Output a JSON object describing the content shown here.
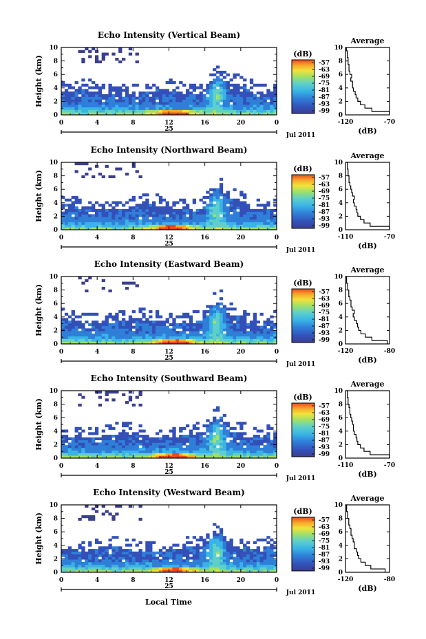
{
  "chart_data": [
    {
      "type": "heatmap",
      "title": "Echo Intensity (Vertical Beam)",
      "ylabel": "Height (km)",
      "ylim": [
        0,
        10
      ],
      "yticks": [
        0,
        2,
        4,
        6,
        8,
        10
      ],
      "xlim": [
        0,
        24
      ],
      "xticks": [
        "0",
        "4",
        "8",
        "12",
        "16",
        "20",
        "0"
      ],
      "date_label": "25",
      "month_label": "Jul 2011",
      "colorbar": {
        "unit": "(dB)",
        "ticks": [
          "-57",
          "-63",
          "-69",
          "-75",
          "-81",
          "-87",
          "-93",
          "-99"
        ]
      },
      "profile": {
        "title": "Average",
        "xlabel": "(dB)",
        "xticks": [
          "-120",
          "-70"
        ],
        "xlim": [
          -120,
          -70
        ],
        "ylim": [
          0,
          10
        ],
        "points": [
          [
            -62,
            0
          ],
          [
            -90,
            0.5
          ],
          [
            -98,
            1
          ],
          [
            -103,
            1.5
          ],
          [
            -106,
            2
          ],
          [
            -108,
            2.5
          ],
          [
            -109,
            3
          ],
          [
            -111,
            3.5
          ],
          [
            -112,
            4
          ],
          [
            -112,
            4.5
          ],
          [
            -114,
            5
          ],
          [
            -113,
            5.5
          ],
          [
            -115,
            6
          ],
          [
            -116,
            6.5
          ],
          [
            -116,
            7
          ],
          [
            -117,
            7.5
          ],
          [
            -117,
            8
          ],
          [
            -118,
            8.5
          ],
          [
            -118,
            9
          ],
          [
            -119,
            9.5
          ],
          [
            -119,
            10
          ]
        ]
      }
    },
    {
      "type": "heatmap",
      "title": "Echo Intensity (Northward Beam)",
      "ylabel": "Height (km)",
      "ylim": [
        0,
        10
      ],
      "yticks": [
        0,
        2,
        4,
        6,
        8,
        10
      ],
      "xlim": [
        0,
        24
      ],
      "xticks": [
        "0",
        "4",
        "8",
        "12",
        "16",
        "20",
        "0"
      ],
      "date_label": "25",
      "month_label": "Jul 2011",
      "colorbar": {
        "unit": "(dB)",
        "ticks": [
          "-57",
          "-63",
          "-69",
          "-75",
          "-81",
          "-87",
          "-93",
          "-99"
        ]
      },
      "profile": {
        "title": "Average",
        "xlabel": "(dB)",
        "xticks": [
          "-110",
          "-70"
        ],
        "xlim": [
          -120,
          -70
        ],
        "ylim": [
          0,
          10
        ],
        "points": [
          [
            -70,
            0
          ],
          [
            -92,
            0.5
          ],
          [
            -99,
            1
          ],
          [
            -103,
            1.5
          ],
          [
            -106,
            2
          ],
          [
            -107,
            2.5
          ],
          [
            -108,
            3
          ],
          [
            -110,
            3.5
          ],
          [
            -111,
            4
          ],
          [
            -110,
            4.5
          ],
          [
            -112,
            5
          ],
          [
            -113,
            5.5
          ],
          [
            -114,
            6
          ],
          [
            -115,
            6.5
          ],
          [
            -116,
            7
          ],
          [
            -116,
            7.5
          ],
          [
            -117,
            8
          ],
          [
            -117,
            8.5
          ],
          [
            -118,
            9
          ],
          [
            -118,
            9.5
          ],
          [
            -119,
            10
          ]
        ]
      }
    },
    {
      "type": "heatmap",
      "title": "Echo Intensity (Eastward Beam)",
      "ylabel": "Height (km)",
      "ylim": [
        0,
        10
      ],
      "yticks": [
        0,
        2,
        4,
        6,
        8,
        10
      ],
      "xlim": [
        0,
        24
      ],
      "xticks": [
        "0",
        "4",
        "8",
        "12",
        "16",
        "20",
        "0"
      ],
      "date_label": "25",
      "month_label": "Jul 2011",
      "colorbar": {
        "unit": "(dB)",
        "ticks": [
          "-57",
          "-63",
          "-69",
          "-75",
          "-81",
          "-87",
          "-93",
          "-99"
        ]
      },
      "profile": {
        "title": "Average",
        "xlabel": "(dB)",
        "xticks": [
          "-120",
          "-80"
        ],
        "xlim": [
          -120,
          -80
        ],
        "ylim": [
          0,
          10
        ],
        "points": [
          [
            -82,
            0
          ],
          [
            -96,
            0.5
          ],
          [
            -102,
            1
          ],
          [
            -106,
            1.5
          ],
          [
            -108,
            2
          ],
          [
            -109,
            2.5
          ],
          [
            -110,
            3
          ],
          [
            -112,
            3.5
          ],
          [
            -113,
            4
          ],
          [
            -112,
            4.5
          ],
          [
            -114,
            5
          ],
          [
            -115,
            5.5
          ],
          [
            -115,
            6
          ],
          [
            -116,
            6.5
          ],
          [
            -117,
            7
          ],
          [
            -117,
            7.5
          ],
          [
            -118,
            8
          ],
          [
            -118,
            8.5
          ],
          [
            -119,
            9
          ],
          [
            -119,
            9.5
          ],
          [
            -120,
            10
          ]
        ]
      }
    },
    {
      "type": "heatmap",
      "title": "Echo Intensity (Southward Beam)",
      "ylabel": "Height (km)",
      "ylim": [
        0,
        10
      ],
      "yticks": [
        0,
        2,
        4,
        6,
        8,
        10
      ],
      "xlim": [
        0,
        24
      ],
      "xticks": [
        "0",
        "4",
        "8",
        "12",
        "16",
        "20",
        "0"
      ],
      "date_label": "25",
      "month_label": "Jul 2011",
      "colorbar": {
        "unit": "(dB)",
        "ticks": [
          "-57",
          "-63",
          "-69",
          "-75",
          "-81",
          "-87",
          "-93",
          "-99"
        ]
      },
      "profile": {
        "title": "Average",
        "xlabel": "(dB)",
        "xticks": [
          "-110",
          "-70"
        ],
        "xlim": [
          -120,
          -70
        ],
        "ylim": [
          0,
          10
        ],
        "points": [
          [
            -70,
            0
          ],
          [
            -92,
            0.5
          ],
          [
            -99,
            1
          ],
          [
            -103,
            1.5
          ],
          [
            -106,
            2
          ],
          [
            -107,
            2.5
          ],
          [
            -108,
            3
          ],
          [
            -110,
            3.5
          ],
          [
            -111,
            4
          ],
          [
            -111,
            4.5
          ],
          [
            -112,
            5
          ],
          [
            -113,
            5.5
          ],
          [
            -114,
            6
          ],
          [
            -115,
            6.5
          ],
          [
            -115,
            7
          ],
          [
            -116,
            7.5
          ],
          [
            -117,
            8
          ],
          [
            -117,
            8.5
          ],
          [
            -118,
            9
          ],
          [
            -118,
            9.5
          ],
          [
            -119,
            10
          ]
        ]
      }
    },
    {
      "type": "heatmap",
      "title": "Echo Intensity (Westward Beam)",
      "ylabel": "Height (km)",
      "ylim": [
        0,
        10
      ],
      "yticks": [
        0,
        2,
        4,
        6,
        8,
        10
      ],
      "xlim": [
        0,
        24
      ],
      "xticks": [
        "0",
        "4",
        "8",
        "12",
        "16",
        "20",
        "0"
      ],
      "date_label": "25",
      "month_label": "Jul 2011",
      "colorbar": {
        "unit": "(dB)",
        "ticks": [
          "-57",
          "-63",
          "-69",
          "-75",
          "-81",
          "-87",
          "-93",
          "-99"
        ]
      },
      "profile": {
        "title": "Average",
        "xlabel": "(dB)",
        "xticks": [
          "-120",
          "-80"
        ],
        "xlim": [
          -120,
          -80
        ],
        "ylim": [
          0,
          10
        ],
        "points": [
          [
            -84,
            0
          ],
          [
            -97,
            0.5
          ],
          [
            -102,
            1
          ],
          [
            -106,
            1.5
          ],
          [
            -108,
            2
          ],
          [
            -109,
            2.5
          ],
          [
            -110,
            3
          ],
          [
            -112,
            3.5
          ],
          [
            -112,
            4
          ],
          [
            -113,
            4.5
          ],
          [
            -114,
            5
          ],
          [
            -115,
            5.5
          ],
          [
            -115,
            6
          ],
          [
            -116,
            6.5
          ],
          [
            -117,
            7
          ],
          [
            -117,
            7.5
          ],
          [
            -118,
            8
          ],
          [
            -118,
            8.5
          ],
          [
            -119,
            9
          ],
          [
            -119,
            9.5
          ],
          [
            -120,
            10
          ]
        ]
      }
    }
  ],
  "common": {
    "xlabel": "Local Time",
    "colormap": [
      "#3b3f8f",
      "#3350b8",
      "#2f7fd8",
      "#3ab4e6",
      "#5fd0c8",
      "#9ee06a",
      "#f2e23a",
      "#f7a72b",
      "#ea4b1e"
    ],
    "sparse_color": "#3b3f8f"
  }
}
